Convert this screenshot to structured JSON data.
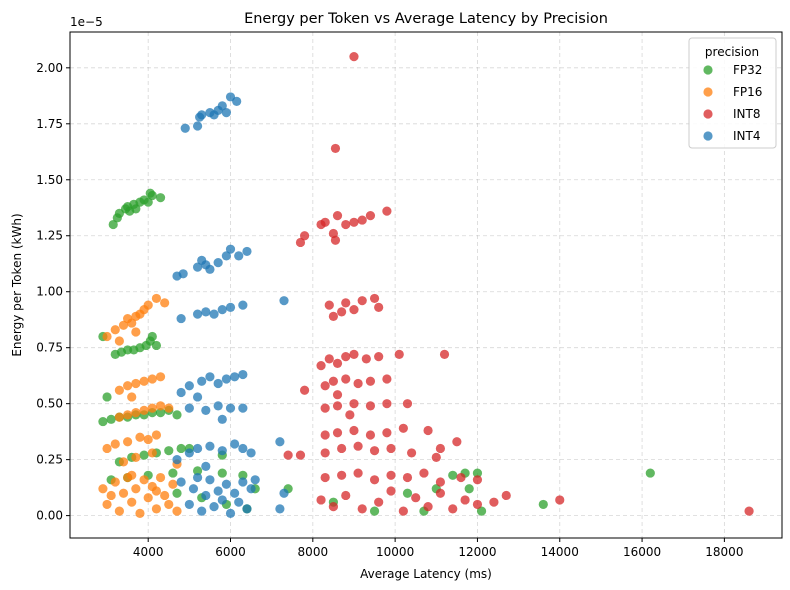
{
  "chart_data": {
    "type": "scatter",
    "title": "Energy per Token vs Average Latency by Precision",
    "xlabel": "Average Latency (ms)",
    "ylabel": "Energy per Token (kWh)",
    "y_multiplier": "1e−5",
    "xlim": [
      2100,
      19400
    ],
    "ylim": [
      -0.1,
      2.16
    ],
    "xticks": [
      4000,
      6000,
      8000,
      10000,
      12000,
      14000,
      16000,
      18000
    ],
    "yticks": [
      "0.00",
      "0.25",
      "0.50",
      "0.75",
      "1.00",
      "1.25",
      "1.50",
      "1.75",
      "2.00"
    ],
    "grid": true,
    "legend": {
      "title": "precision",
      "placement": "top-right"
    },
    "series": [
      {
        "name": "FP32",
        "color": "#2ca02c",
        "points": [
          [
            3150,
            1.3
          ],
          [
            3250,
            1.33
          ],
          [
            3300,
            1.35
          ],
          [
            3450,
            1.37
          ],
          [
            3500,
            1.38
          ],
          [
            3550,
            1.36
          ],
          [
            3650,
            1.39
          ],
          [
            3700,
            1.37
          ],
          [
            3800,
            1.4
          ],
          [
            3900,
            1.41
          ],
          [
            4000,
            1.4
          ],
          [
            4050,
            1.44
          ],
          [
            4100,
            1.43
          ],
          [
            4300,
            1.42
          ],
          [
            2900,
            0.8
          ],
          [
            3200,
            0.72
          ],
          [
            3350,
            0.73
          ],
          [
            3500,
            0.74
          ],
          [
            3650,
            0.74
          ],
          [
            3800,
            0.75
          ],
          [
            3950,
            0.76
          ],
          [
            4050,
            0.78
          ],
          [
            4100,
            0.8
          ],
          [
            4200,
            0.76
          ],
          [
            2900,
            0.42
          ],
          [
            3100,
            0.43
          ],
          [
            3300,
            0.44
          ],
          [
            3500,
            0.44
          ],
          [
            3700,
            0.45
          ],
          [
            3900,
            0.45
          ],
          [
            4100,
            0.46
          ],
          [
            4300,
            0.46
          ],
          [
            4500,
            0.47
          ],
          [
            4700,
            0.45
          ],
          [
            3000,
            0.53
          ],
          [
            3300,
            0.24
          ],
          [
            3600,
            0.26
          ],
          [
            3900,
            0.27
          ],
          [
            4200,
            0.28
          ],
          [
            4500,
            0.29
          ],
          [
            4800,
            0.3
          ],
          [
            5000,
            0.3
          ],
          [
            5800,
            0.27
          ],
          [
            3100,
            0.16
          ],
          [
            3500,
            0.17
          ],
          [
            4000,
            0.18
          ],
          [
            4600,
            0.19
          ],
          [
            5200,
            0.2
          ],
          [
            5800,
            0.19
          ],
          [
            6300,
            0.18
          ],
          [
            6600,
            0.12
          ],
          [
            4700,
            0.1
          ],
          [
            5300,
            0.08
          ],
          [
            5900,
            0.05
          ],
          [
            6400,
            0.03
          ],
          [
            7400,
            0.12
          ],
          [
            8500,
            0.06
          ],
          [
            9500,
            0.02
          ],
          [
            10300,
            0.1
          ],
          [
            10700,
            0.02
          ],
          [
            11000,
            0.12
          ],
          [
            11400,
            0.18
          ],
          [
            11700,
            0.19
          ],
          [
            12000,
            0.19
          ],
          [
            11800,
            0.12
          ],
          [
            12100,
            0.02
          ],
          [
            13600,
            0.05
          ],
          [
            16200,
            0.19
          ]
        ]
      },
      {
        "name": "FP16",
        "color": "#ff7f0e",
        "points": [
          [
            3000,
            0.8
          ],
          [
            3200,
            0.83
          ],
          [
            3400,
            0.85
          ],
          [
            3500,
            0.88
          ],
          [
            3600,
            0.86
          ],
          [
            3700,
            0.89
          ],
          [
            3800,
            0.9
          ],
          [
            3900,
            0.92
          ],
          [
            4000,
            0.94
          ],
          [
            4200,
            0.97
          ],
          [
            4400,
            0.95
          ],
          [
            3300,
            0.78
          ],
          [
            3700,
            0.82
          ],
          [
            3300,
            0.56
          ],
          [
            3500,
            0.58
          ],
          [
            3700,
            0.59
          ],
          [
            3900,
            0.6
          ],
          [
            4100,
            0.61
          ],
          [
            4300,
            0.62
          ],
          [
            3600,
            0.53
          ],
          [
            3300,
            0.44
          ],
          [
            3500,
            0.45
          ],
          [
            3700,
            0.46
          ],
          [
            3900,
            0.47
          ],
          [
            4100,
            0.48
          ],
          [
            4300,
            0.49
          ],
          [
            4500,
            0.48
          ],
          [
            3000,
            0.3
          ],
          [
            3200,
            0.32
          ],
          [
            3500,
            0.33
          ],
          [
            3800,
            0.35
          ],
          [
            4000,
            0.34
          ],
          [
            4200,
            0.36
          ],
          [
            4700,
            0.23
          ],
          [
            3400,
            0.24
          ],
          [
            3700,
            0.26
          ],
          [
            4100,
            0.28
          ],
          [
            2900,
            0.12
          ],
          [
            3000,
            0.05
          ],
          [
            3200,
            0.15
          ],
          [
            3300,
            0.02
          ],
          [
            3400,
            0.1
          ],
          [
            3500,
            0.17
          ],
          [
            3600,
            0.06
          ],
          [
            3700,
            0.12
          ],
          [
            3800,
            0.01
          ],
          [
            3900,
            0.16
          ],
          [
            4000,
            0.08
          ],
          [
            4100,
            0.13
          ],
          [
            4200,
            0.03
          ],
          [
            4300,
            0.17
          ],
          [
            4400,
            0.09
          ],
          [
            4500,
            0.05
          ],
          [
            4600,
            0.14
          ],
          [
            4700,
            0.02
          ],
          [
            3100,
            0.09
          ],
          [
            3600,
            0.18
          ],
          [
            4200,
            0.11
          ]
        ]
      },
      {
        "name": "INT8",
        "color": "#d62728",
        "points": [
          [
            9000,
            2.05
          ],
          [
            8550,
            1.64
          ],
          [
            7700,
            1.22
          ],
          [
            7800,
            1.25
          ],
          [
            8200,
            1.3
          ],
          [
            8300,
            1.31
          ],
          [
            8500,
            1.26
          ],
          [
            8600,
            1.34
          ],
          [
            8800,
            1.3
          ],
          [
            9000,
            1.31
          ],
          [
            9200,
            1.32
          ],
          [
            9400,
            1.34
          ],
          [
            9800,
            1.36
          ],
          [
            8550,
            1.23
          ],
          [
            8400,
            0.94
          ],
          [
            8500,
            0.89
          ],
          [
            8700,
            0.91
          ],
          [
            8800,
            0.95
          ],
          [
            9000,
            0.92
          ],
          [
            9200,
            0.96
          ],
          [
            9500,
            0.97
          ],
          [
            9600,
            0.93
          ],
          [
            8200,
            0.67
          ],
          [
            8400,
            0.7
          ],
          [
            8600,
            0.68
          ],
          [
            8800,
            0.71
          ],
          [
            9000,
            0.72
          ],
          [
            9300,
            0.7
          ],
          [
            9600,
            0.71
          ],
          [
            10100,
            0.72
          ],
          [
            11200,
            0.72
          ],
          [
            7800,
            0.56
          ],
          [
            8300,
            0.58
          ],
          [
            8500,
            0.6
          ],
          [
            8800,
            0.61
          ],
          [
            9100,
            0.59
          ],
          [
            9400,
            0.6
          ],
          [
            9800,
            0.61
          ],
          [
            8600,
            0.54
          ],
          [
            8300,
            0.48
          ],
          [
            8600,
            0.49
          ],
          [
            9000,
            0.5
          ],
          [
            9400,
            0.49
          ],
          [
            9800,
            0.5
          ],
          [
            10300,
            0.5
          ],
          [
            8900,
            0.45
          ],
          [
            8300,
            0.36
          ],
          [
            8600,
            0.37
          ],
          [
            9000,
            0.38
          ],
          [
            9400,
            0.36
          ],
          [
            9800,
            0.37
          ],
          [
            10200,
            0.39
          ],
          [
            10800,
            0.38
          ],
          [
            7400,
            0.27
          ],
          [
            7700,
            0.27
          ],
          [
            8300,
            0.28
          ],
          [
            8700,
            0.3
          ],
          [
            9100,
            0.31
          ],
          [
            9500,
            0.29
          ],
          [
            9900,
            0.3
          ],
          [
            10400,
            0.28
          ],
          [
            11100,
            0.3
          ],
          [
            11500,
            0.33
          ],
          [
            11000,
            0.26
          ],
          [
            8300,
            0.17
          ],
          [
            8700,
            0.18
          ],
          [
            9100,
            0.19
          ],
          [
            9500,
            0.16
          ],
          [
            9900,
            0.18
          ],
          [
            10300,
            0.17
          ],
          [
            10700,
            0.19
          ],
          [
            11100,
            0.15
          ],
          [
            11600,
            0.17
          ],
          [
            12000,
            0.16
          ],
          [
            8200,
            0.07
          ],
          [
            8500,
            0.04
          ],
          [
            8800,
            0.09
          ],
          [
            9200,
            0.03
          ],
          [
            9600,
            0.06
          ],
          [
            9900,
            0.11
          ],
          [
            10200,
            0.02
          ],
          [
            10500,
            0.08
          ],
          [
            10800,
            0.04
          ],
          [
            11100,
            0.1
          ],
          [
            11400,
            0.03
          ],
          [
            11700,
            0.07
          ],
          [
            12000,
            0.05
          ],
          [
            12400,
            0.06
          ],
          [
            12700,
            0.09
          ],
          [
            14000,
            0.07
          ],
          [
            18600,
            0.02
          ]
        ]
      },
      {
        "name": "INT4",
        "color": "#1f77b4",
        "points": [
          [
            4900,
            1.73
          ],
          [
            5200,
            1.74
          ],
          [
            5250,
            1.78
          ],
          [
            5300,
            1.79
          ],
          [
            5500,
            1.8
          ],
          [
            5600,
            1.79
          ],
          [
            5700,
            1.81
          ],
          [
            5800,
            1.83
          ],
          [
            5900,
            1.8
          ],
          [
            6000,
            1.87
          ],
          [
            6150,
            1.85
          ],
          [
            4700,
            1.07
          ],
          [
            4850,
            1.08
          ],
          [
            5200,
            1.11
          ],
          [
            5400,
            1.12
          ],
          [
            5500,
            1.1
          ],
          [
            5700,
            1.13
          ],
          [
            5900,
            1.16
          ],
          [
            6000,
            1.19
          ],
          [
            6200,
            1.16
          ],
          [
            6400,
            1.18
          ],
          [
            5300,
            1.14
          ],
          [
            4800,
            0.88
          ],
          [
            5200,
            0.9
          ],
          [
            5400,
            0.91
          ],
          [
            5600,
            0.9
          ],
          [
            5800,
            0.92
          ],
          [
            6000,
            0.93
          ],
          [
            6300,
            0.94
          ],
          [
            7300,
            0.96
          ],
          [
            4800,
            0.55
          ],
          [
            5000,
            0.58
          ],
          [
            5300,
            0.6
          ],
          [
            5500,
            0.62
          ],
          [
            5700,
            0.59
          ],
          [
            5900,
            0.61
          ],
          [
            6100,
            0.62
          ],
          [
            6300,
            0.63
          ],
          [
            5200,
            0.53
          ],
          [
            5000,
            0.48
          ],
          [
            5400,
            0.47
          ],
          [
            5700,
            0.49
          ],
          [
            6000,
            0.48
          ],
          [
            6300,
            0.48
          ],
          [
            5800,
            0.43
          ],
          [
            4700,
            0.25
          ],
          [
            5000,
            0.28
          ],
          [
            5200,
            0.3
          ],
          [
            5500,
            0.31
          ],
          [
            5800,
            0.29
          ],
          [
            6100,
            0.32
          ],
          [
            6300,
            0.3
          ],
          [
            6500,
            0.28
          ],
          [
            7200,
            0.33
          ],
          [
            5400,
            0.22
          ],
          [
            4800,
            0.15
          ],
          [
            5000,
            0.05
          ],
          [
            5100,
            0.12
          ],
          [
            5300,
            0.02
          ],
          [
            5400,
            0.09
          ],
          [
            5500,
            0.16
          ],
          [
            5600,
            0.04
          ],
          [
            5700,
            0.11
          ],
          [
            5800,
            0.07
          ],
          [
            5900,
            0.14
          ],
          [
            6000,
            0.01
          ],
          [
            6100,
            0.1
          ],
          [
            6200,
            0.06
          ],
          [
            6300,
            0.15
          ],
          [
            6400,
            0.03
          ],
          [
            6500,
            0.12
          ],
          [
            6600,
            0.16
          ],
          [
            5200,
            0.17
          ],
          [
            7300,
            0.1
          ],
          [
            7200,
            0.03
          ]
        ]
      }
    ]
  }
}
